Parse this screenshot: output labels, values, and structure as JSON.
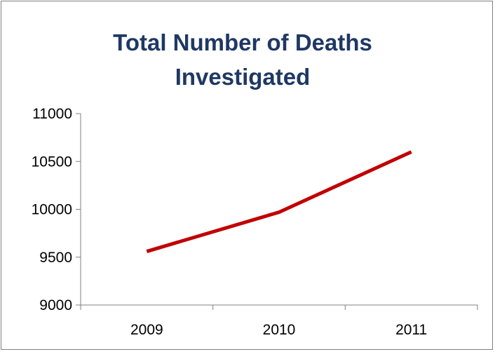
{
  "chart_data": {
    "type": "line",
    "title": "Total Number of Deaths Investigated",
    "title_lines": [
      "Total Number of Deaths",
      "Investigated"
    ],
    "categories": [
      "2009",
      "2010",
      "2011"
    ],
    "series": [
      {
        "values": [
          9560,
          9970,
          10600
        ],
        "color": "#c00000"
      }
    ],
    "ylim": [
      9000,
      11000
    ],
    "yticks": [
      9000,
      9500,
      10000,
      10500,
      11000
    ],
    "ytick_labels": [
      "9000",
      "9500",
      "10000",
      "10500",
      "11000"
    ],
    "xlabel": "",
    "ylabel": "",
    "grid": false,
    "legend": "none"
  }
}
